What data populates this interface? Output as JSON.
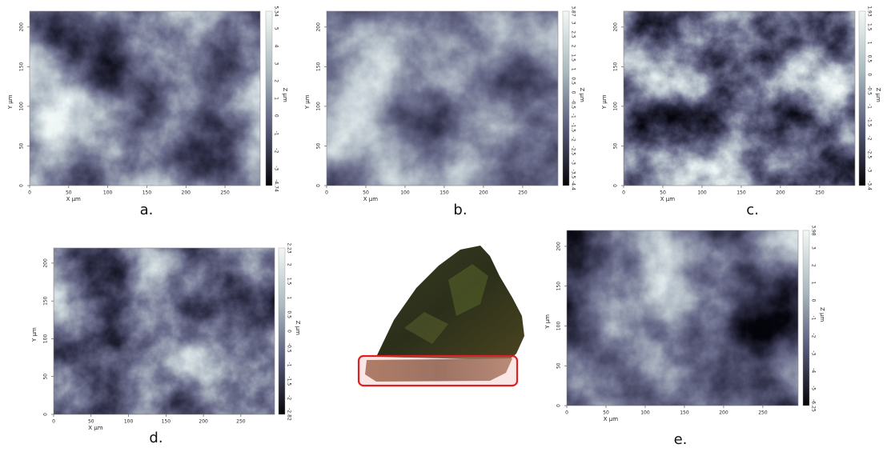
{
  "panels": [
    {
      "label": "a.",
      "x_label": "X µm",
      "y_label": "Y µm",
      "z_label": "Z µm",
      "x_ticks": [
        "0",
        "50",
        "100",
        "150",
        "200",
        "250"
      ],
      "y_ticks": [
        "0",
        "50",
        "100",
        "150",
        "200"
      ],
      "z_ticks": [
        "5.34",
        "5",
        "4",
        "3",
        "2",
        "1",
        "0",
        "-1",
        "-2",
        "-3",
        "-4.74"
      ]
    },
    {
      "label": "b.",
      "x_label": "X µm",
      "y_label": "Y µm",
      "z_label": "Z µm",
      "x_ticks": [
        "0",
        "50",
        "100",
        "150",
        "200",
        "250"
      ],
      "y_ticks": [
        "0",
        "50",
        "100",
        "150",
        "200"
      ],
      "z_ticks": [
        "3.87",
        "3",
        "2.5",
        "2",
        "1.5",
        "1",
        "0.5",
        "0",
        "-0.5",
        "-1",
        "-1.5",
        "-2",
        "-2.5",
        "-3",
        "-3.5",
        "-4.4"
      ]
    },
    {
      "label": "c.",
      "x_label": "X µm",
      "y_label": "Y µm",
      "z_label": "Z µm",
      "x_ticks": [
        "0",
        "50",
        "100",
        "150",
        "200",
        "250"
      ],
      "y_ticks": [
        "0",
        "50",
        "100",
        "150",
        "200"
      ],
      "z_ticks": [
        "1.93",
        "1.5",
        "1",
        "0.5",
        "0",
        "-0.5",
        "-1",
        "-1.5",
        "-2",
        "-2.5",
        "-3",
        "-3.4"
      ]
    },
    {
      "label": "d.",
      "x_label": "X µm",
      "y_label": "Y µm",
      "z_label": "Z µm",
      "x_ticks": [
        "0",
        "50",
        "100",
        "150",
        "200",
        "250"
      ],
      "y_ticks": [
        "0",
        "50",
        "100",
        "150",
        "200"
      ],
      "z_ticks": [
        "2.23",
        "2",
        "1.5",
        "1",
        "0.5",
        "0",
        "-0.5",
        "-1",
        "-1.5",
        "-2",
        "-2.82"
      ]
    },
    {
      "label": "e.",
      "x_label": "X µm",
      "y_label": "Y µm",
      "z_label": "Z µm",
      "x_ticks": [
        "0",
        "50",
        "100",
        "150",
        "200",
        "250"
      ],
      "y_ticks": [
        "0",
        "50",
        "100",
        "150",
        "200"
      ],
      "z_ticks": [
        "3.98",
        "3",
        "2",
        "1",
        "0",
        "-1",
        "-2",
        "-3",
        "-4",
        "-5",
        "-6.25"
      ]
    }
  ]
}
